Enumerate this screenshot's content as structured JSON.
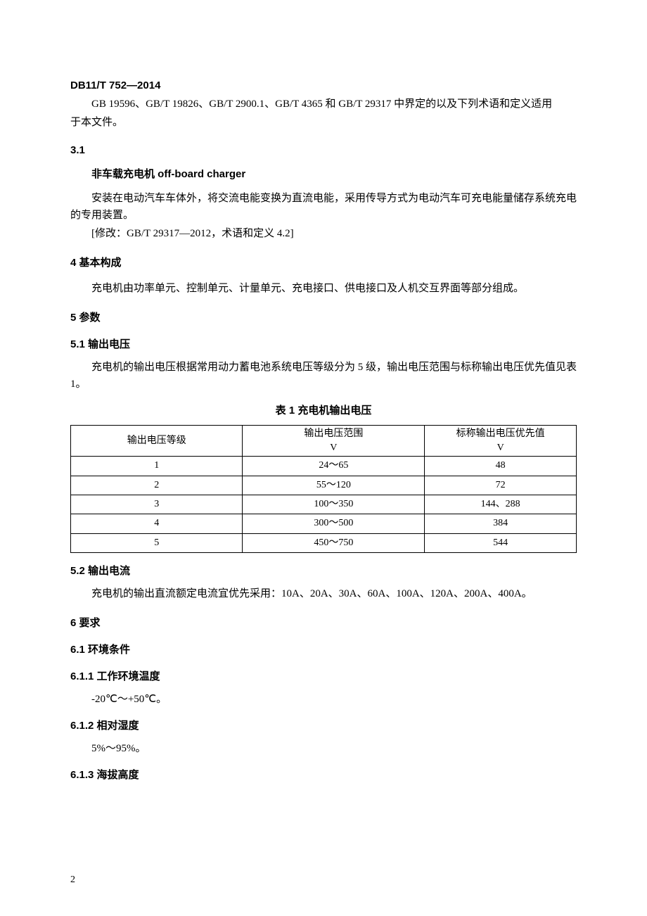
{
  "doc_code": "DB11/T 752—2014",
  "intro_line1": "GB 19596、GB/T 19826、GB/T 2900.1、GB/T 4365 和 GB/T 29317 中界定的以及下列术语和定义适用",
  "intro_line2": "于本文件。",
  "s3_1_num": "3.1",
  "s3_1_term": "非车载充电机 off-board charger",
  "s3_1_p1": "安装在电动汽车车体外，将交流电能变换为直流电能，采用传导方式为电动汽车可充电能量储存系统充电的专用装置。",
  "s3_1_p2": "[修改：GB/T 29317—2012，术语和定义 4.2]",
  "s4_h": "4  基本构成",
  "s4_p": "充电机由功率单元、控制单元、计量单元、充电接口、供电接口及人机交互界面等部分组成。",
  "s5_h": "5  参数",
  "s5_1_h": "5.1  输出电压",
  "s5_1_p": "充电机的输出电压根据常用动力蓄电池系统电压等级分为 5 级，输出电压范围与标称输出电压优先值见表 1。",
  "table1_caption": "表 1  充电机输出电压",
  "table1": {
    "columns": [
      {
        "label": "输出电压等级",
        "unit": ""
      },
      {
        "label": "输出电压范围",
        "unit": "V"
      },
      {
        "label": "标称输出电压优先值",
        "unit": "V"
      }
    ],
    "rows": [
      [
        "1",
        "24～65",
        "48"
      ],
      [
        "2",
        "55～120",
        "72"
      ],
      [
        "3",
        "100～350",
        "144、288"
      ],
      [
        "4",
        "300～500",
        "384"
      ],
      [
        "5",
        "450～750",
        "544"
      ]
    ]
  },
  "s5_2_h": "5.2  输出电流",
  "s5_2_p": "充电机的输出直流额定电流宜优先采用：10A、20A、30A、60A、100A、120A、200A、400A。",
  "s6_h": "6  要求",
  "s6_1_h": "6.1  环境条件",
  "s6_1_1_h": "6.1.1  工作环境温度",
  "s6_1_1_p": "-20℃～+50℃。",
  "s6_1_2_h": "6.1.2  相对湿度",
  "s6_1_2_p": "5%～95%。",
  "s6_1_3_h": "6.1.3  海拔高度",
  "page_number": "2"
}
